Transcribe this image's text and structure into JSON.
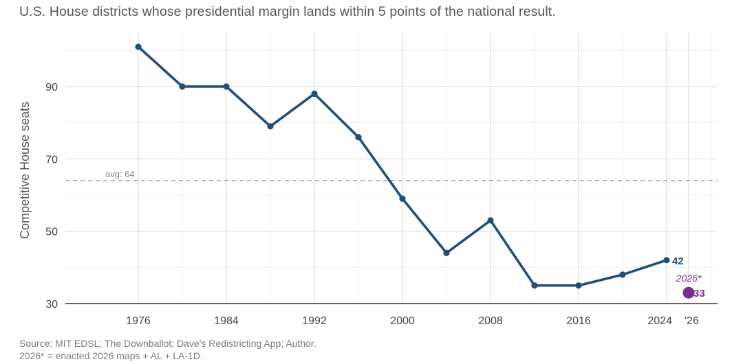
{
  "header": {
    "title": "U.S. House districts whose presidential margin lands within 5 points of the national result."
  },
  "footer": {
    "source": "Source: MIT EDSL; The Downballot; Dave's Redistricting App; Author.",
    "note": "2026* = enacted 2026 maps + AL + LA-1D."
  },
  "chart_data": {
    "type": "line",
    "title": "U.S. House districts whose presidential margin lands within 5 points of the national result.",
    "xlabel": "",
    "ylabel": "Competitive House seats",
    "x_ticks": [
      "1976",
      "1984",
      "1992",
      "2000",
      "2008",
      "2016",
      "2024",
      "'26"
    ],
    "y_ticks": [
      30,
      50,
      70,
      90
    ],
    "xlim": [
      1973,
      2029
    ],
    "ylim": [
      30,
      103
    ],
    "grid": true,
    "colors": {
      "line": "#1f4e79",
      "highlight": "#7b2d8e",
      "avg": "#999999"
    },
    "series": [
      {
        "x": [
          1976,
          1980,
          1984,
          1988,
          1992,
          1996,
          2000,
          2004,
          2008,
          2012,
          2016,
          2020,
          2024
        ],
        "values": [
          101,
          90,
          90,
          79,
          88,
          76,
          59,
          44,
          53,
          35,
          35,
          38,
          42
        ]
      }
    ],
    "end_label": "42",
    "average": {
      "value": 64,
      "label": "avg: 64"
    },
    "projection": {
      "x": 2026,
      "value": 33,
      "label": "2026*",
      "value_label": "33"
    }
  }
}
